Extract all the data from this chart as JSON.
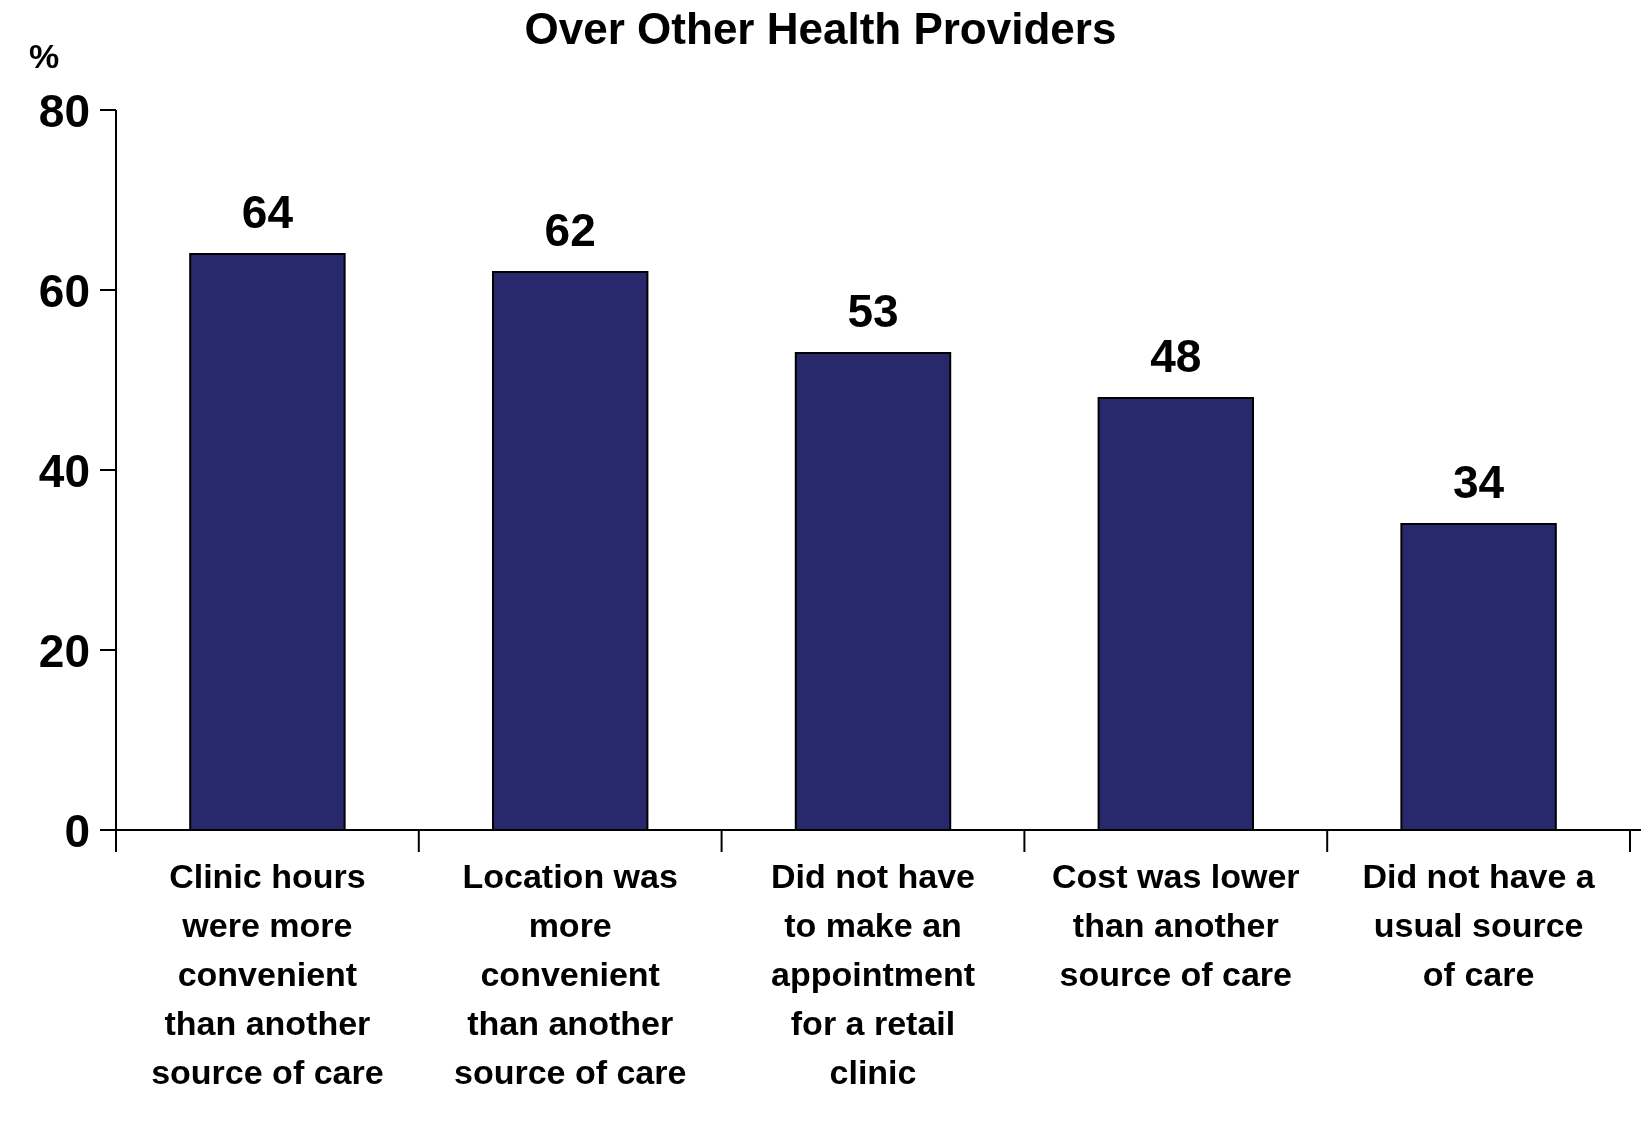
{
  "chart_data": {
    "type": "bar",
    "title": "Over Other Health Providers",
    "ylabel": "%",
    "categories": [
      "Clinic hours were more convenient than another source of care",
      "Location was more convenient than another source of care",
      "Did not have to make an appointment for a retail clinic",
      "Cost was lower than another source of care",
      "Did not have a usual source of care"
    ],
    "values": [
      64,
      62,
      53,
      48,
      34
    ],
    "color": "#28286c",
    "ylim": [
      0,
      80
    ],
    "yticks": [
      0,
      20,
      40,
      60,
      80
    ],
    "grid": false,
    "data_labels": true
  }
}
